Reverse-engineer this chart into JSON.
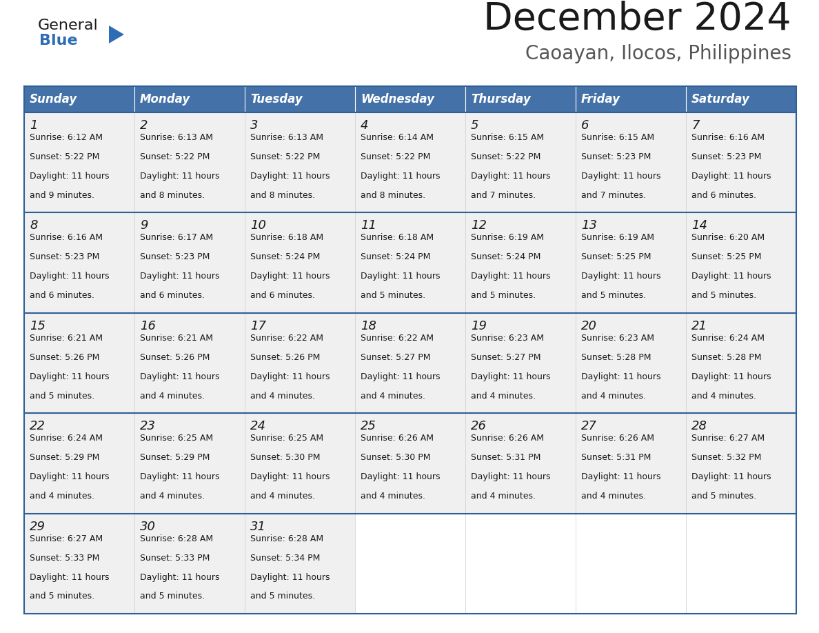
{
  "title": "December 2024",
  "subtitle": "Caoayan, Ilocos, Philippines",
  "header_color": "#4472a8",
  "header_text_color": "#ffffff",
  "cell_bg_color": "#f0f0f0",
  "empty_cell_bg": "#ffffff",
  "border_color": "#2e5f96",
  "text_color": "#1a1a1a",
  "days_of_week": [
    "Sunday",
    "Monday",
    "Tuesday",
    "Wednesday",
    "Thursday",
    "Friday",
    "Saturday"
  ],
  "calendar_data": [
    [
      {
        "day": 1,
        "sunrise": "6:12 AM",
        "sunset": "5:22 PM",
        "daylight_hours": 11,
        "daylight_minutes": 9
      },
      {
        "day": 2,
        "sunrise": "6:13 AM",
        "sunset": "5:22 PM",
        "daylight_hours": 11,
        "daylight_minutes": 8
      },
      {
        "day": 3,
        "sunrise": "6:13 AM",
        "sunset": "5:22 PM",
        "daylight_hours": 11,
        "daylight_minutes": 8
      },
      {
        "day": 4,
        "sunrise": "6:14 AM",
        "sunset": "5:22 PM",
        "daylight_hours": 11,
        "daylight_minutes": 8
      },
      {
        "day": 5,
        "sunrise": "6:15 AM",
        "sunset": "5:22 PM",
        "daylight_hours": 11,
        "daylight_minutes": 7
      },
      {
        "day": 6,
        "sunrise": "6:15 AM",
        "sunset": "5:23 PM",
        "daylight_hours": 11,
        "daylight_minutes": 7
      },
      {
        "day": 7,
        "sunrise": "6:16 AM",
        "sunset": "5:23 PM",
        "daylight_hours": 11,
        "daylight_minutes": 6
      }
    ],
    [
      {
        "day": 8,
        "sunrise": "6:16 AM",
        "sunset": "5:23 PM",
        "daylight_hours": 11,
        "daylight_minutes": 6
      },
      {
        "day": 9,
        "sunrise": "6:17 AM",
        "sunset": "5:23 PM",
        "daylight_hours": 11,
        "daylight_minutes": 6
      },
      {
        "day": 10,
        "sunrise": "6:18 AM",
        "sunset": "5:24 PM",
        "daylight_hours": 11,
        "daylight_minutes": 6
      },
      {
        "day": 11,
        "sunrise": "6:18 AM",
        "sunset": "5:24 PM",
        "daylight_hours": 11,
        "daylight_minutes": 5
      },
      {
        "day": 12,
        "sunrise": "6:19 AM",
        "sunset": "5:24 PM",
        "daylight_hours": 11,
        "daylight_minutes": 5
      },
      {
        "day": 13,
        "sunrise": "6:19 AM",
        "sunset": "5:25 PM",
        "daylight_hours": 11,
        "daylight_minutes": 5
      },
      {
        "day": 14,
        "sunrise": "6:20 AM",
        "sunset": "5:25 PM",
        "daylight_hours": 11,
        "daylight_minutes": 5
      }
    ],
    [
      {
        "day": 15,
        "sunrise": "6:21 AM",
        "sunset": "5:26 PM",
        "daylight_hours": 11,
        "daylight_minutes": 5
      },
      {
        "day": 16,
        "sunrise": "6:21 AM",
        "sunset": "5:26 PM",
        "daylight_hours": 11,
        "daylight_minutes": 4
      },
      {
        "day": 17,
        "sunrise": "6:22 AM",
        "sunset": "5:26 PM",
        "daylight_hours": 11,
        "daylight_minutes": 4
      },
      {
        "day": 18,
        "sunrise": "6:22 AM",
        "sunset": "5:27 PM",
        "daylight_hours": 11,
        "daylight_minutes": 4
      },
      {
        "day": 19,
        "sunrise": "6:23 AM",
        "sunset": "5:27 PM",
        "daylight_hours": 11,
        "daylight_minutes": 4
      },
      {
        "day": 20,
        "sunrise": "6:23 AM",
        "sunset": "5:28 PM",
        "daylight_hours": 11,
        "daylight_minutes": 4
      },
      {
        "day": 21,
        "sunrise": "6:24 AM",
        "sunset": "5:28 PM",
        "daylight_hours": 11,
        "daylight_minutes": 4
      }
    ],
    [
      {
        "day": 22,
        "sunrise": "6:24 AM",
        "sunset": "5:29 PM",
        "daylight_hours": 11,
        "daylight_minutes": 4
      },
      {
        "day": 23,
        "sunrise": "6:25 AM",
        "sunset": "5:29 PM",
        "daylight_hours": 11,
        "daylight_minutes": 4
      },
      {
        "day": 24,
        "sunrise": "6:25 AM",
        "sunset": "5:30 PM",
        "daylight_hours": 11,
        "daylight_minutes": 4
      },
      {
        "day": 25,
        "sunrise": "6:26 AM",
        "sunset": "5:30 PM",
        "daylight_hours": 11,
        "daylight_minutes": 4
      },
      {
        "day": 26,
        "sunrise": "6:26 AM",
        "sunset": "5:31 PM",
        "daylight_hours": 11,
        "daylight_minutes": 4
      },
      {
        "day": 27,
        "sunrise": "6:26 AM",
        "sunset": "5:31 PM",
        "daylight_hours": 11,
        "daylight_minutes": 4
      },
      {
        "day": 28,
        "sunrise": "6:27 AM",
        "sunset": "5:32 PM",
        "daylight_hours": 11,
        "daylight_minutes": 5
      }
    ],
    [
      {
        "day": 29,
        "sunrise": "6:27 AM",
        "sunset": "5:33 PM",
        "daylight_hours": 11,
        "daylight_minutes": 5
      },
      {
        "day": 30,
        "sunrise": "6:28 AM",
        "sunset": "5:33 PM",
        "daylight_hours": 11,
        "daylight_minutes": 5
      },
      {
        "day": 31,
        "sunrise": "6:28 AM",
        "sunset": "5:34 PM",
        "daylight_hours": 11,
        "daylight_minutes": 5
      },
      null,
      null,
      null,
      null
    ]
  ],
  "logo_general_color": "#1a1a1a",
  "logo_blue_color": "#2e6db4",
  "logo_triangle_color": "#2e6db4",
  "title_fontsize": 40,
  "subtitle_fontsize": 20,
  "header_fontsize": 12,
  "day_num_fontsize": 13,
  "cell_text_fontsize": 9
}
